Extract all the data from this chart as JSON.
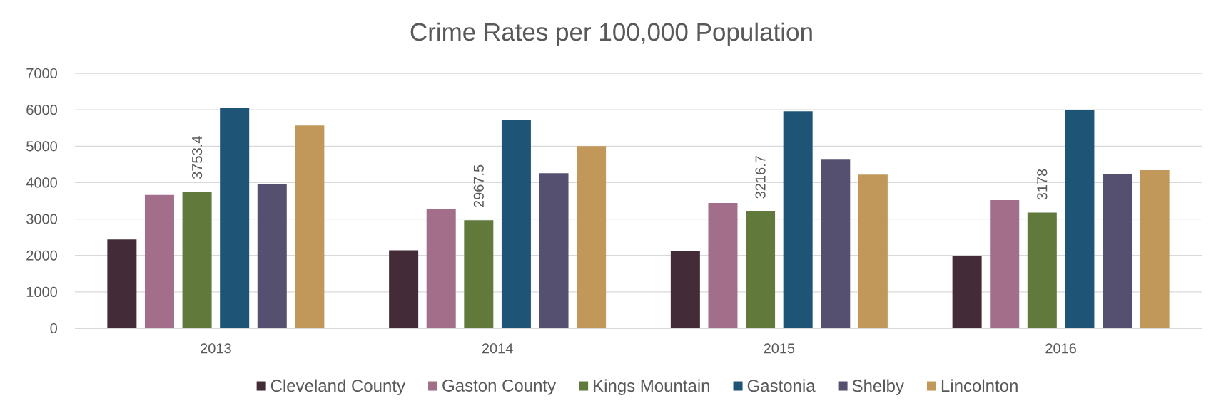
{
  "chart_data": {
    "type": "bar",
    "title": "Crime Rates per 100,000 Population",
    "categories": [
      "2013",
      "2014",
      "2015",
      "2016"
    ],
    "series": [
      {
        "name": "Cleveland County",
        "color": "#442b38",
        "values": [
          2440,
          2140,
          2130,
          1980
        ]
      },
      {
        "name": "Gaston County",
        "color": "#a36e8a",
        "values": [
          3660,
          3280,
          3440,
          3520
        ]
      },
      {
        "name": "Kings Mountain",
        "color": "#617a3c",
        "values": [
          3753.4,
          2967.5,
          3216.7,
          3178
        ],
        "value_labels": [
          "3753.4",
          "2967.5",
          "3216.7",
          "3178"
        ]
      },
      {
        "name": "Gastonia",
        "color": "#1e5577",
        "values": [
          6040,
          5720,
          5960,
          5990
        ]
      },
      {
        "name": "Shelby",
        "color": "#55506f",
        "values": [
          3960,
          4260,
          4650,
          4230
        ]
      },
      {
        "name": "Lincolnton",
        "color": "#c1975a",
        "values": [
          5570,
          5000,
          4220,
          4340
        ]
      }
    ],
    "ylim": [
      0,
      7000
    ],
    "yticks": [
      0,
      1000,
      2000,
      3000,
      4000,
      5000,
      6000,
      7000
    ],
    "grid": "y",
    "legend": "bottom"
  }
}
